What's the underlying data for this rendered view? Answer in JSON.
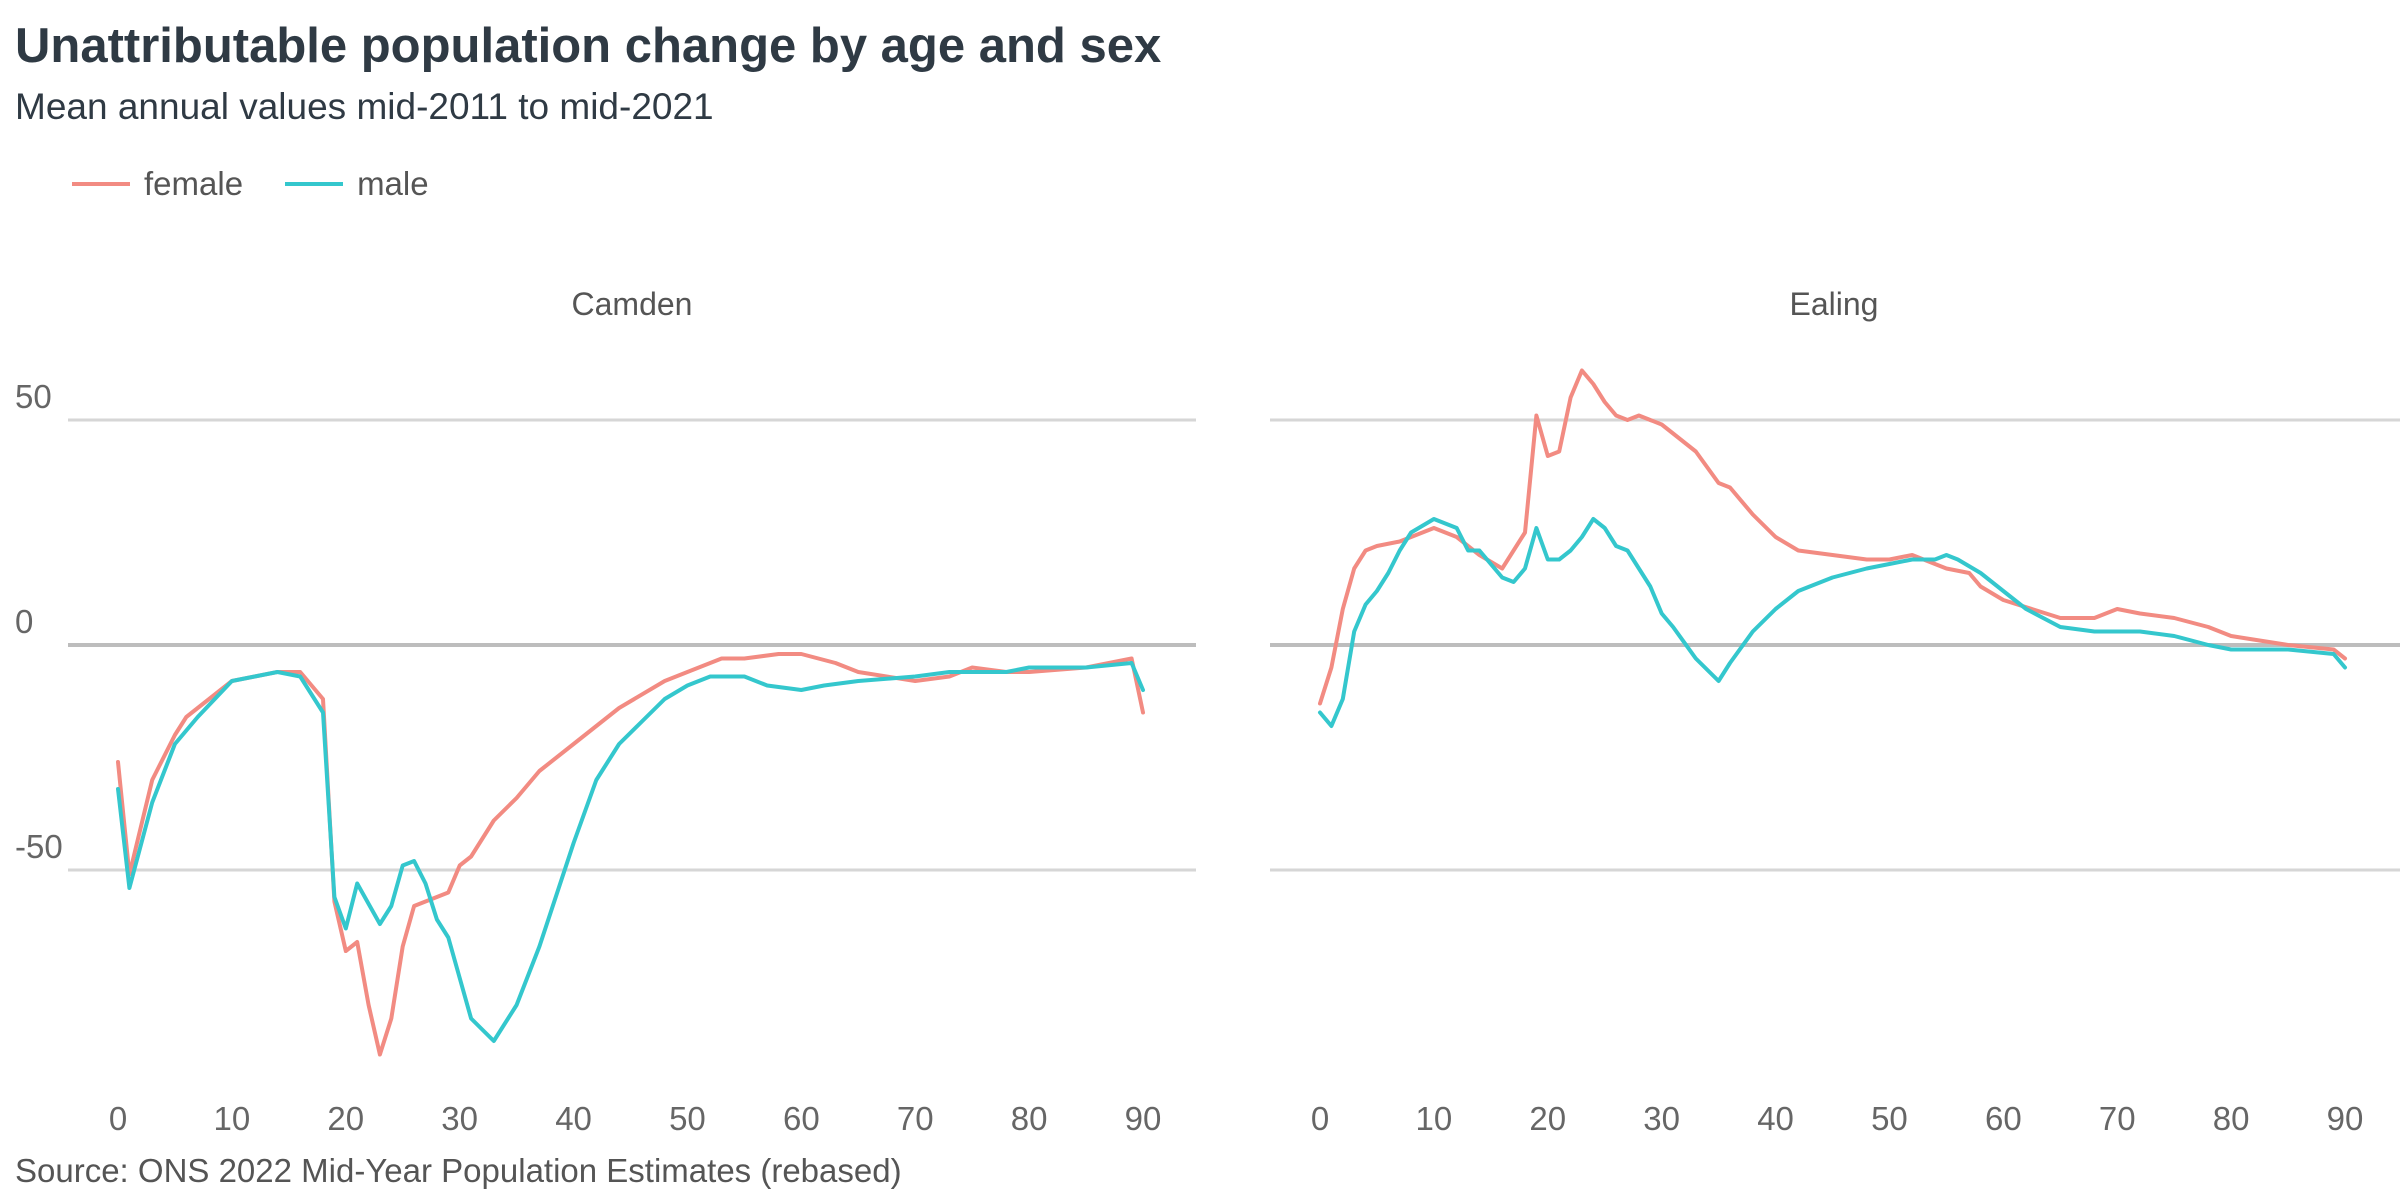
{
  "title": "Unattributable population change by age and sex",
  "subtitle": "Mean annual values mid-2011 to mid-2021",
  "source": "Source: ONS 2022 Mid-Year Population Estimates (rebased)",
  "legend": [
    {
      "name": "female",
      "color": "#f28b82"
    },
    {
      "name": "male",
      "color": "#34c7cd"
    }
  ],
  "chart_data": {
    "type": "line",
    "xlim": [
      0,
      90
    ],
    "ylim": [
      -100,
      65
    ],
    "x_ticks": [
      "0",
      "10",
      "20",
      "30",
      "40",
      "50",
      "60",
      "70",
      "80",
      "90"
    ],
    "y_ticks": [
      "50",
      "0",
      "-50"
    ],
    "grid": "horizontal",
    "legend_position": "top-left",
    "panels": [
      {
        "label": "Camden",
        "series": [
          {
            "name": "female",
            "color": "#f28b82",
            "x": [
              0,
              1,
              3,
              5,
              6,
              7,
              10,
              12,
              14,
              16,
              18,
              19,
              20,
              21,
              22,
              23,
              24,
              25,
              26,
              27,
              28,
              29,
              30,
              31,
              33,
              35,
              37,
              40,
              44,
              48,
              50,
              53,
              55,
              58,
              60,
              63,
              65,
              70,
              73,
              75,
              78,
              80,
              85,
              89,
              90
            ],
            "y": [
              -26,
              -51,
              -30,
              -20,
              -16,
              -14,
              -8,
              -7,
              -6,
              -6,
              -12,
              -57,
              -68,
              -66,
              -80,
              -91,
              -83,
              -67,
              -58,
              -57,
              -56,
              -55,
              -49,
              -47,
              -39,
              -34,
              -28,
              -22,
              -14,
              -8,
              -6,
              -3,
              -3,
              -2,
              -2,
              -4,
              -6,
              -8,
              -7,
              -5,
              -6,
              -6,
              -5,
              -3,
              -15
            ]
          },
          {
            "name": "male",
            "color": "#34c7cd",
            "x": [
              0,
              1,
              3,
              5,
              7,
              10,
              12,
              14,
              16,
              18,
              19,
              20,
              21,
              23,
              24,
              25,
              26,
              27,
              28,
              29,
              30,
              31,
              33,
              35,
              37,
              40,
              42,
              44,
              46,
              48,
              50,
              52,
              55,
              57,
              60,
              62,
              65,
              70,
              73,
              75,
              78,
              80,
              85,
              89,
              90
            ],
            "y": [
              -32,
              -54,
              -35,
              -22,
              -16,
              -8,
              -7,
              -6,
              -7,
              -15,
              -56,
              -63,
              -53,
              -62,
              -58,
              -49,
              -48,
              -53,
              -61,
              -65,
              -74,
              -83,
              -88,
              -80,
              -67,
              -44,
              -30,
              -22,
              -17,
              -12,
              -9,
              -7,
              -7,
              -9,
              -10,
              -9,
              -8,
              -7,
              -6,
              -6,
              -6,
              -5,
              -5,
              -4,
              -10
            ]
          }
        ]
      },
      {
        "label": "Ealing",
        "series": [
          {
            "name": "female",
            "color": "#f28b82",
            "x": [
              0,
              1,
              2,
              3,
              4,
              5,
              7,
              8,
              10,
              12,
              14,
              16,
              18,
              19,
              20,
              21,
              22,
              23,
              24,
              25,
              26,
              27,
              28,
              30,
              31,
              33,
              35,
              36,
              38,
              40,
              42,
              45,
              48,
              50,
              52,
              55,
              57,
              58,
              60,
              65,
              68,
              70,
              72,
              75,
              78,
              80,
              85,
              89,
              90
            ],
            "y": [
              -13,
              -5,
              8,
              17,
              21,
              22,
              23,
              24,
              26,
              24,
              20,
              17,
              25,
              51,
              42,
              43,
              55,
              61,
              58,
              54,
              51,
              50,
              51,
              49,
              47,
              43,
              36,
              35,
              29,
              24,
              21,
              20,
              19,
              19,
              20,
              17,
              16,
              13,
              10,
              6,
              6,
              8,
              7,
              6,
              4,
              2,
              0,
              -1,
              -3
            ]
          },
          {
            "name": "male",
            "color": "#34c7cd",
            "x": [
              0,
              1,
              2,
              3,
              4,
              5,
              6,
              7,
              8,
              10,
              11,
              12,
              13,
              14,
              15,
              16,
              17,
              18,
              19,
              20,
              21,
              22,
              23,
              24,
              25,
              26,
              27,
              28,
              29,
              30,
              31,
              33,
              35,
              36,
              38,
              40,
              42,
              45,
              48,
              50,
              52,
              54,
              55,
              56,
              58,
              60,
              62,
              65,
              68,
              70,
              72,
              75,
              78,
              80,
              85,
              89,
              90
            ],
            "y": [
              -15,
              -18,
              -12,
              3,
              9,
              12,
              16,
              21,
              25,
              28,
              27,
              26,
              21,
              21,
              18,
              15,
              14,
              17,
              26,
              19,
              19,
              21,
              24,
              28,
              26,
              22,
              21,
              17,
              13,
              7,
              4,
              -3,
              -8,
              -4,
              3,
              8,
              12,
              15,
              17,
              18,
              19,
              19,
              20,
              19,
              16,
              12,
              8,
              4,
              3,
              3,
              3,
              2,
              0,
              -1,
              -1,
              -2,
              -5
            ]
          }
        ]
      }
    ]
  }
}
